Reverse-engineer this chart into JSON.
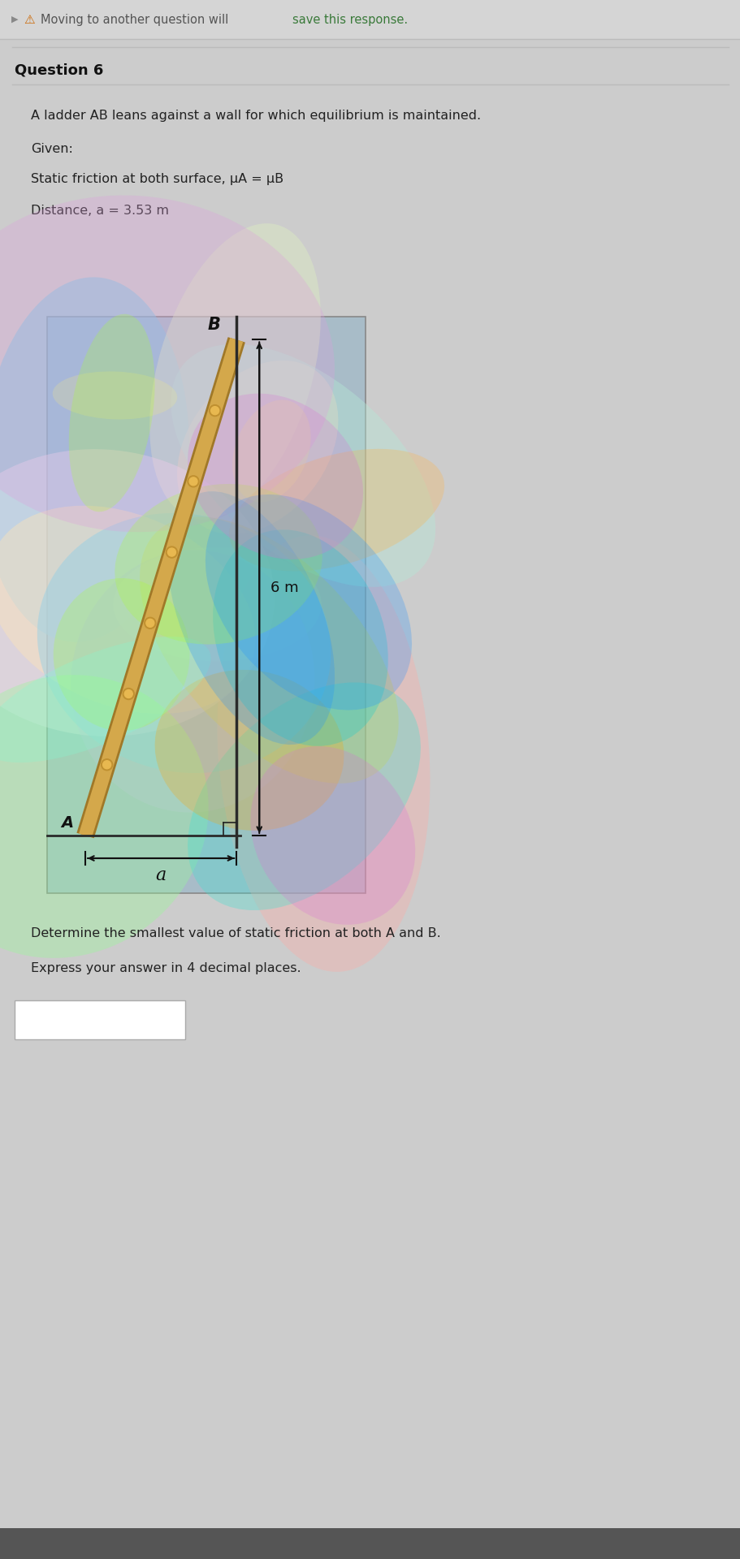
{
  "page_bg": "#cccccc",
  "header_bg": "#d0d0d0",
  "header_text": "Moving to another question will save this response.",
  "question_number": "Question 6",
  "line1": "A ladder AB leans against a wall for which equilibrium is maintained.",
  "given_label": "Given:",
  "static_friction_text": "Static friction at both surface, μA = μB",
  "distance_text": "Distance, a = 3.53 m",
  "diagram_bg_top": "#b0bec8",
  "diagram_bg_bottom": "#9db0c0",
  "ladder_color": "#d4a84b",
  "ladder_edge": "#a07828",
  "label_B": "B",
  "label_A": "A",
  "label_6m": "6 m",
  "label_a": "a",
  "footer_line1": "Determine the smallest value of static friction at both A and B.",
  "footer_line2": "Express your answer in 4 decimal places.",
  "answer_box_color": "#ffffff",
  "warning_color": "#cc6600",
  "wall_color": "#7a8fa0",
  "floor_color": "#8899aa",
  "bottom_bar_color": "#555555"
}
